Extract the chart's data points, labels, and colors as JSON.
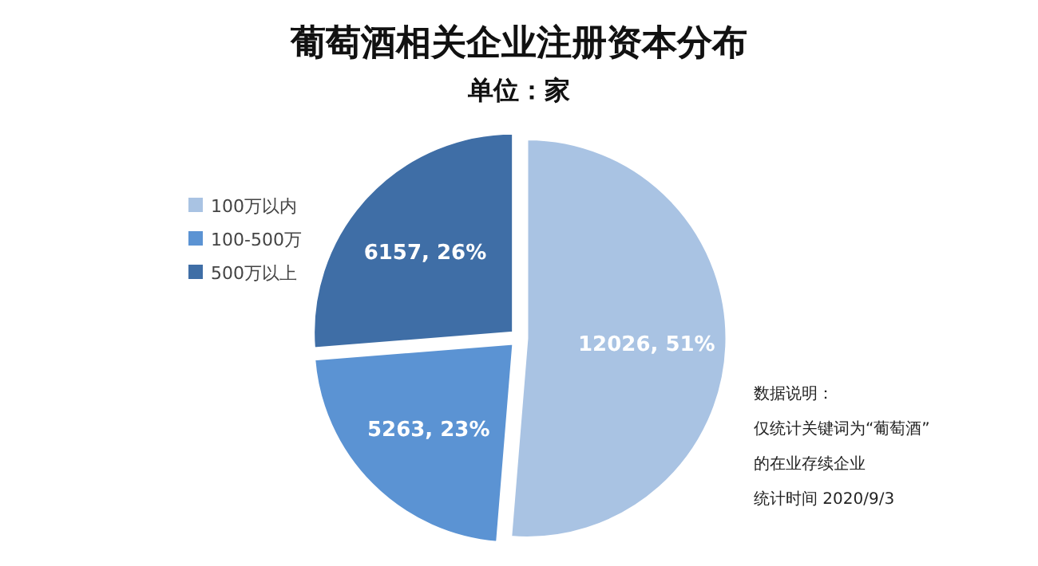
{
  "chart_data": {
    "type": "pie",
    "title": "葡萄酒相关企业注册资本分布",
    "subtitle": "单位：家",
    "categories": [
      "100万以内",
      "100-500万",
      "500万以上"
    ],
    "values": [
      12026,
      5263,
      6157
    ],
    "value_labels": [
      "12026, 51%",
      "5263, 23%",
      "6157, 26%"
    ],
    "colors": [
      "#a9c3e3",
      "#5b93d3",
      "#3f6ea6"
    ],
    "legend": "left",
    "annotations": [
      "数据说明：",
      "仅统计关键词为“葡萄酒”",
      "的在业存续企业",
      "统计时间 2020/9/3"
    ]
  }
}
